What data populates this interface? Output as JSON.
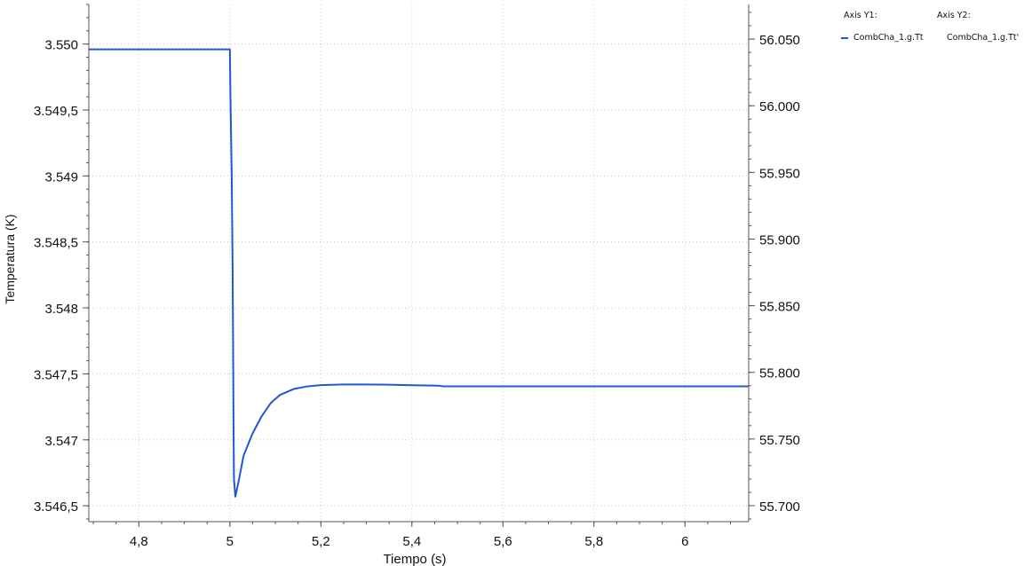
{
  "chart_data": {
    "type": "line",
    "title": "",
    "xlabel": "Tiempo (s)",
    "ylabel": "Temperatura (K)",
    "y2label": "",
    "xlim": [
      4.69,
      6.14
    ],
    "ylim": [
      3546.38,
      3550.3
    ],
    "y2lim": [
      55.688,
      56.076
    ],
    "x_ticks": [
      4.8,
      5.0,
      5.2,
      5.4,
      5.6,
      5.8,
      6.0
    ],
    "x_tick_labels": [
      "4,8",
      "5",
      "5,2",
      "5,4",
      "5,6",
      "5,8",
      "6"
    ],
    "y_ticks": [
      3546.5,
      3547.0,
      3547.5,
      3548.0,
      3548.5,
      3549.0,
      3549.5,
      3550.0
    ],
    "y_tick_labels": [
      "3.546,5",
      "3.547",
      "3.547,5",
      "3.548",
      "3.548,5",
      "3.549",
      "3.549,5",
      "3.550"
    ],
    "y2_ticks": [
      55.7,
      55.75,
      55.8,
      55.85,
      55.9,
      55.95,
      56.0,
      56.05
    ],
    "y2_tick_labels": [
      "55.700",
      "55.750",
      "55.800",
      "55.850",
      "55.900",
      "55.950",
      "56.000",
      "56.050"
    ],
    "grid": true,
    "legend_position": "top-right",
    "series": [
      {
        "name": "CombCha_1.g.Tt",
        "axis": "y1",
        "color": "#1f57d6",
        "x": [
          4.69,
          5.0,
          5.001,
          5.004,
          5.006,
          5.007,
          5.008,
          5.009,
          5.012,
          5.02,
          5.03,
          5.05,
          5.07,
          5.09,
          5.11,
          5.14,
          5.17,
          5.2,
          5.25,
          5.3,
          5.35,
          5.4,
          5.46,
          5.47,
          6.0,
          6.14
        ],
        "y": [
          3549.96,
          3549.96,
          3549.65,
          3549.0,
          3548.3,
          3547.75,
          3547.1,
          3546.7,
          3546.57,
          3546.7,
          3546.88,
          3547.05,
          3547.18,
          3547.28,
          3547.34,
          3547.385,
          3547.405,
          3547.415,
          3547.42,
          3547.42,
          3547.418,
          3547.414,
          3547.41,
          3547.405,
          3547.405,
          3547.405
        ]
      }
    ],
    "legend": {
      "axis_y1_header": "Axis Y1:",
      "axis_y2_header": "Axis Y2:",
      "y1_entries": [
        "CombCha_1.g.Tt"
      ],
      "y2_entries": [
        "CombCha_1.g.Tt'"
      ]
    }
  }
}
